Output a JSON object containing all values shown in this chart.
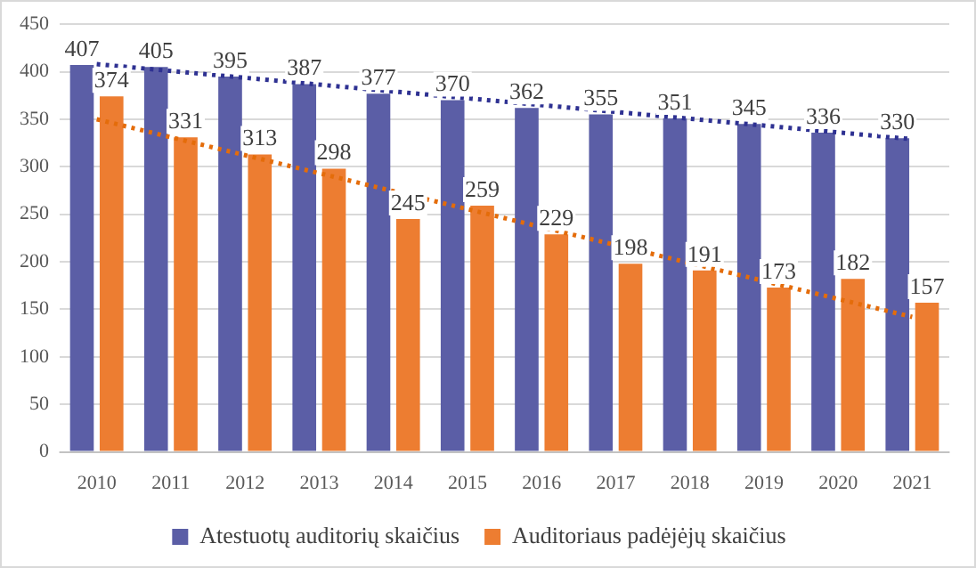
{
  "chart_data": {
    "type": "bar",
    "categories": [
      "2010",
      "2011",
      "2012",
      "2013",
      "2014",
      "2015",
      "2016",
      "2017",
      "2018",
      "2019",
      "2020",
      "2021"
    ],
    "series": [
      {
        "name": "Atestuotų auditorių skaičius",
        "color": "#5b5ea6",
        "values": [
          407,
          405,
          395,
          387,
          377,
          370,
          362,
          355,
          351,
          345,
          336,
          330
        ],
        "value_labels": [
          "407",
          "405",
          "395",
          "387",
          "377",
          "370",
          "362",
          "355",
          "351",
          "345",
          "336",
          "330"
        ]
      },
      {
        "name": "Auditoriaus padėjėjų skaičius",
        "color": "#ed7d31",
        "values": [
          374,
          331,
          313,
          298,
          245,
          259,
          229,
          198,
          191,
          173,
          182,
          157
        ],
        "value_labels": [
          "374",
          "331",
          "313",
          "298",
          "245",
          "259",
          "229",
          "198",
          "191",
          "173",
          "182",
          "157"
        ]
      },
      {
        "type": "line",
        "color": "#2e3192",
        "values": [
          408,
          null,
          null,
          null,
          null,
          null,
          null,
          null,
          null,
          null,
          null,
          329
        ],
        "line_style": "dotted",
        "marker": "none"
      },
      {
        "type": "line",
        "color": "#e46c0a",
        "values": [
          350,
          null,
          null,
          null,
          null,
          null,
          null,
          null,
          null,
          null,
          null,
          142
        ],
        "line_style": "dotted",
        "marker": "none"
      }
    ],
    "ylim": [
      0,
      450
    ],
    "yticks": [
      0,
      50,
      100,
      150,
      200,
      250,
      300,
      350,
      400,
      450
    ],
    "grid": "y",
    "legend": "bottom"
  }
}
